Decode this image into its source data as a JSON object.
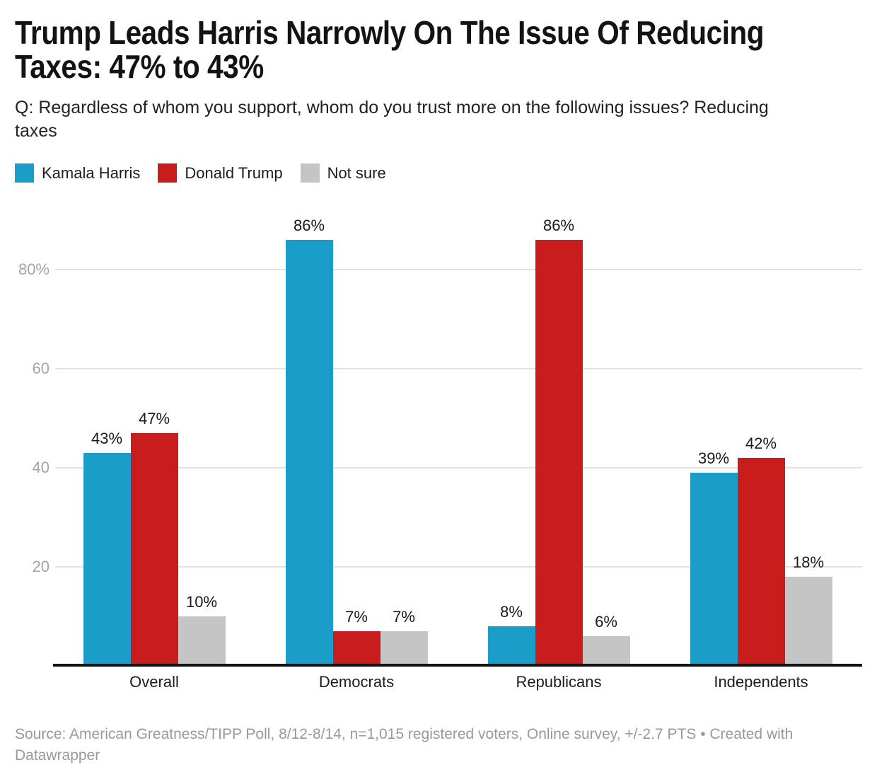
{
  "header": {
    "title_line1": "Trump Leads Harris Narrowly On The Issue Of Reducing",
    "title_line2": "Taxes: 47% to 43%",
    "subtitle_line1": "Q: Regardless of whom you support, whom do you trust more on the following issues? Reducing",
    "subtitle_line2": "taxes"
  },
  "legend": {
    "items": [
      {
        "label": "Kamala Harris",
        "color": "#1b9dca"
      },
      {
        "label": "Donald Trump",
        "color": "#c91d1d"
      },
      {
        "label": "Not sure",
        "color": "#c5c5c5"
      }
    ]
  },
  "chart_data": {
    "type": "bar",
    "title": "Trump Leads Harris Narrowly On The Issue Of Reducing Taxes: 47% to 43%",
    "subtitle": "Q: Regardless of whom you support, whom do you trust more on the following issues? Reducing taxes",
    "categories": [
      "Overall",
      "Democrats",
      "Republicans",
      "Independents"
    ],
    "series": [
      {
        "name": "Kamala Harris",
        "color": "#1b9dca",
        "values": [
          43,
          86,
          8,
          39
        ]
      },
      {
        "name": "Donald Trump",
        "color": "#c91d1d",
        "values": [
          47,
          7,
          86,
          42
        ]
      },
      {
        "name": "Not sure",
        "color": "#c5c5c5",
        "values": [
          10,
          7,
          6,
          18
        ]
      }
    ],
    "value_suffix": "%",
    "y_ticks": [
      {
        "label": "80%",
        "value": 80
      },
      {
        "label": "60",
        "value": 60
      },
      {
        "label": "40",
        "value": 40
      },
      {
        "label": "20",
        "value": 20
      }
    ],
    "ylim": [
      0,
      90
    ],
    "grid": true,
    "legend_position": "top",
    "colors": {
      "grid": "#e2e2e2",
      "axis": "#131313",
      "tick_text": "#a5a5a5"
    }
  },
  "footer": {
    "source_line1": "Source: American Greatness/TIPP Poll, 8/12-8/14, n=1,015 registered voters, Online survey, +/-2.7 PTS • Created with",
    "source_line2": "Datawrapper"
  }
}
